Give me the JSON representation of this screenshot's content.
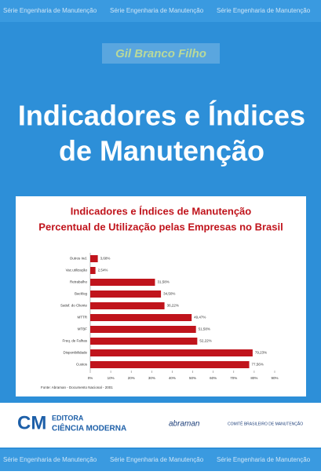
{
  "strip": "Série Engenharia de Manutenção",
  "author": "Gil Branco Filho",
  "title": [
    "Indicadores e Índices",
    "de Manutenção"
  ],
  "chart_data": {
    "type": "hbar",
    "title": [
      "Indicadores e Índices de Manutenção",
      "Percentual de Utilização pelas Empresas no Brasil"
    ],
    "categories": [
      "Outros Ind.",
      "Vac.utilização",
      "Retrabalho",
      "Backlog",
      "Satisf. do Cliente",
      "MTTR",
      "MTBF",
      "Freq. de Falhas",
      "Disponibilidade",
      "Custos"
    ],
    "values": [
      3.68,
      2.54,
      31.58,
      34.5,
      36.22,
      49.47,
      51.58,
      52.22,
      79.23,
      77.56
    ],
    "value_labels": [
      "3,68%",
      "2,54%",
      "31,58%",
      "34,50%",
      "36,22%",
      "49,47%",
      "51,58%",
      "52,22%",
      "79,23%",
      "77,56%"
    ],
    "color": "#c0141c",
    "xlim": [
      0,
      90
    ],
    "xticks": [
      {
        "value": 0,
        "label": "0%"
      },
      {
        "value": 10,
        "label": "10%"
      },
      {
        "value": 20,
        "label": "20%"
      },
      {
        "value": 30,
        "label": "30%"
      },
      {
        "value": 40,
        "label": "40%"
      },
      {
        "value": 50,
        "label": "50%"
      },
      {
        "value": 60,
        "label": "60%"
      },
      {
        "value": 70,
        "label": "70%"
      },
      {
        "value": 80,
        "label": "80%"
      },
      {
        "value": 90,
        "label": "90%"
      }
    ],
    "source": "Fonte: Abraman - Documento Nacional - 2001"
  },
  "publisher": [
    "EDITORA",
    "CIÊNCIA MODERNA"
  ],
  "partners": [
    "abraman",
    "COMITÊ BRASILEIRO DE MANUTENÇÃO"
  ]
}
